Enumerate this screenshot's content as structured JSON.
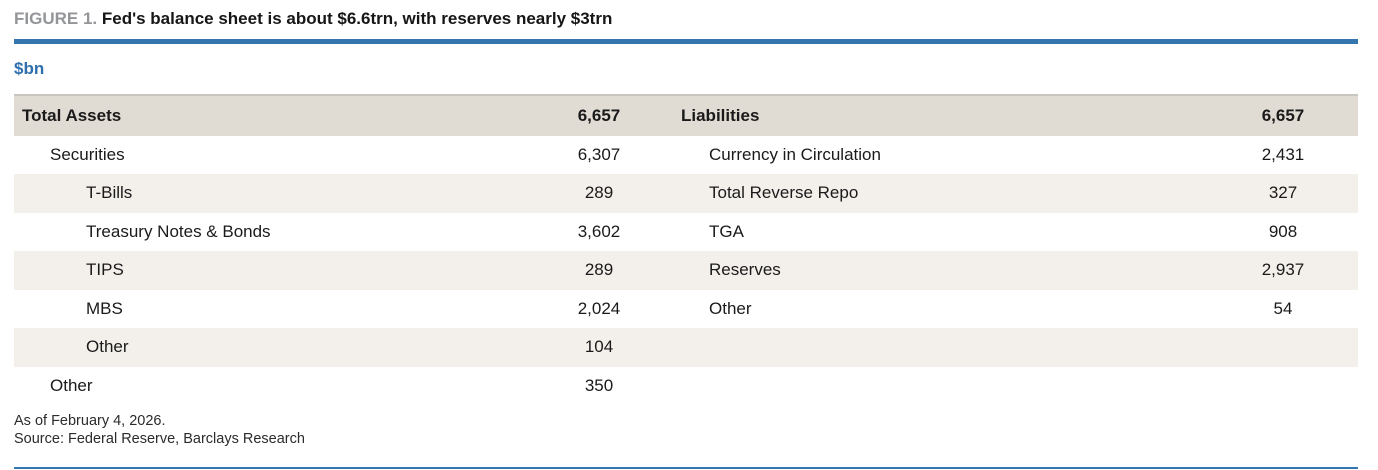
{
  "figure": {
    "label": "FIGURE 1.",
    "title": "Fed's balance sheet is about $6.6trn, with reserves nearly $3trn",
    "units_label": "$bn"
  },
  "balance_sheet": {
    "assets": {
      "header_label": "Total Assets",
      "header_value": "6,657",
      "rows": [
        {
          "label": "Securities",
          "value": "6,307"
        },
        {
          "label": "T-Bills",
          "value": "289"
        },
        {
          "label": "Treasury Notes & Bonds",
          "value": "3,602"
        },
        {
          "label": "TIPS",
          "value": "289"
        },
        {
          "label": "MBS",
          "value": "2,024"
        },
        {
          "label": "Other",
          "value": "104"
        },
        {
          "label": "Other",
          "value": "350"
        }
      ]
    },
    "liabilities": {
      "header_label": "Liabilities",
      "header_value": "6,657",
      "rows": [
        {
          "label": "Currency in Circulation",
          "value": "2,431"
        },
        {
          "label": "Total Reverse Repo",
          "value": "327"
        },
        {
          "label": "TGA",
          "value": "908"
        },
        {
          "label": "Reserves",
          "value": "2,937"
        },
        {
          "label": "Other",
          "value": "54"
        },
        {
          "label": "",
          "value": ""
        },
        {
          "label": "",
          "value": ""
        }
      ]
    }
  },
  "footnotes": {
    "as_of": "As of February 4, 2026.",
    "source": "Source: Federal Reserve, Barclays Research"
  },
  "colors": {
    "accent_blue": "#3476ad",
    "units_blue": "#2e6fad",
    "figure_label_gray": "#939598",
    "table_header_bg": "#e0dbd3",
    "row_stripe_bg": "#f3f0ec",
    "text": "#1a1a1a"
  },
  "chart_data": {
    "type": "table",
    "title": "FIGURE 1. Fed's balance sheet is about $6.6trn, with reserves nearly $3trn",
    "units": "$bn",
    "columns": [
      "Assets item",
      "Assets value ($bn)",
      "Liabilities item",
      "Liabilities value ($bn)"
    ],
    "assets": {
      "total_assets": 6657,
      "securities": 6307,
      "t_bills": 289,
      "treasury_notes_and_bonds": 3602,
      "tips": 289,
      "mbs": 2024,
      "securities_other": 104,
      "other": 350
    },
    "liabilities": {
      "total_liabilities": 6657,
      "currency_in_circulation": 2431,
      "total_reverse_repo": 327,
      "tga": 908,
      "reserves": 2937,
      "other": 54
    },
    "notes": [
      "As of February 4, 2026.",
      "Source: Federal Reserve, Barclays Research"
    ]
  }
}
